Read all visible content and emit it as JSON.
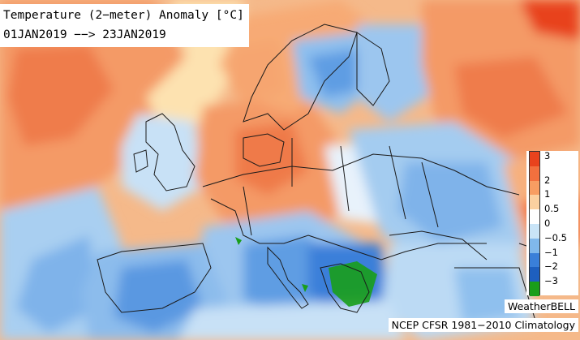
{
  "title": {
    "line1": "Temperature (2−meter) Anomaly   [°C]",
    "line2": "01JAN2019 −−> 23JAN2019"
  },
  "legend": {
    "ticks": [
      "3",
      "2",
      "1",
      "0.5",
      "0",
      "−0.5",
      "−1",
      "−2",
      "−3"
    ],
    "colors": [
      "#e8431d",
      "#f2703e",
      "#f79d62",
      "#fbd0a0",
      "#ffffff",
      "#c9e4f7",
      "#80b8ec",
      "#3a7fd9",
      "#1e5fbf",
      "#1a9e1a"
    ]
  },
  "credits": {
    "brand": "WeatherBELL",
    "source": "NCEP CFSR 1981−2010 Climatology"
  }
}
